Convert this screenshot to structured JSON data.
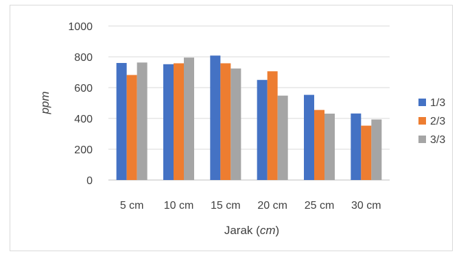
{
  "chart_data": {
    "type": "bar",
    "title": "",
    "categories": [
      "5 cm",
      "10 cm",
      "15 cm",
      "20 cm",
      "25 cm",
      "30 cm"
    ],
    "series": [
      {
        "name": "1/3",
        "values": [
          760,
          752,
          808,
          650,
          553,
          432
        ],
        "color": "#4472c4"
      },
      {
        "name": "2/3",
        "values": [
          682,
          758,
          758,
          706,
          455,
          353
        ],
        "color": "#ed7d31"
      },
      {
        "name": "3/3",
        "values": [
          763,
          795,
          724,
          548,
          431,
          393
        ],
        "color": "#a5a5a5"
      }
    ],
    "xlabel": "Jarak (",
    "xlabel_unit": "cm",
    "xlabel_close": ")",
    "ylabel": "ppm",
    "ylim": [
      0,
      1000
    ],
    "yticks": [
      0,
      200,
      400,
      600,
      800,
      1000
    ],
    "grid": true,
    "legend_position": "right"
  }
}
